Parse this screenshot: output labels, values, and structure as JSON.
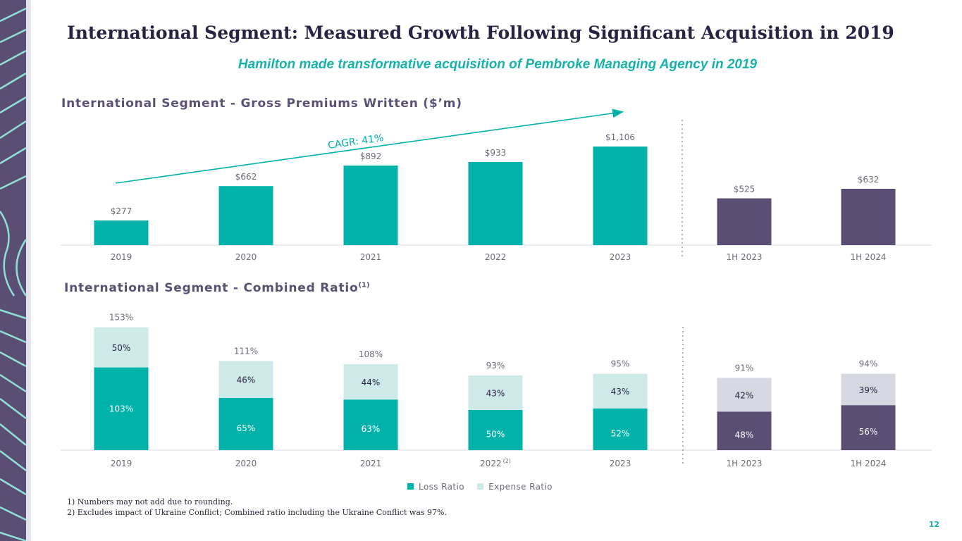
{
  "title": "International Segment: Measured Growth Following Significant Acquisition in 2019",
  "subtitle": "Hamilton made transformative acquisition of Pembroke Managing Agency in 2019",
  "colors": {
    "teal": "#00b2a9",
    "purple": "#5a4e75",
    "light_teal": "#cdeae8",
    "light_grey": "#d6d8e1",
    "title": "#2a2244"
  },
  "chart_data": [
    {
      "type": "bar",
      "title": "International Segment - Gross Premiums Written ($’m)",
      "categories": [
        "2019",
        "2020",
        "2021",
        "2022",
        "2023",
        "1H 2023",
        "1H 2024"
      ],
      "values": [
        277,
        662,
        892,
        933,
        1106,
        525,
        632
      ],
      "value_labels": [
        "$277",
        "$662",
        "$892",
        "$933",
        "$1,106",
        "$525",
        "$632"
      ],
      "highlight": [
        "teal",
        "teal",
        "teal",
        "teal",
        "teal",
        "purple",
        "purple"
      ],
      "annotation": "CAGR: 41%",
      "ylim": [
        0,
        1200
      ]
    },
    {
      "type": "bar",
      "stacked": true,
      "title": "International Segment - Combined Ratio",
      "title_footnote": "(1)",
      "categories": [
        "2019",
        "2020",
        "2021",
        "2022",
        "2023",
        "1H 2023",
        "1H 2024"
      ],
      "category_footnotes": [
        "",
        "",
        "",
        "(2)",
        "",
        "",
        ""
      ],
      "series": [
        {
          "name": "Loss Ratio",
          "values": [
            103,
            65,
            63,
            50,
            52,
            48,
            56
          ],
          "labels": [
            "103%",
            "65%",
            "63%",
            "50%",
            "52%",
            "48%",
            "56%"
          ]
        },
        {
          "name": "Expense Ratio",
          "values": [
            50,
            46,
            44,
            43,
            43,
            42,
            39
          ],
          "labels": [
            "50%",
            "46%",
            "44%",
            "43%",
            "43%",
            "42%",
            "39%"
          ]
        }
      ],
      "totals": [
        153,
        111,
        108,
        93,
        95,
        91,
        94
      ],
      "total_labels": [
        "153%",
        "111%",
        "108%",
        "93%",
        "95%",
        "91%",
        "94%"
      ],
      "ylim": [
        0,
        160
      ],
      "legend": [
        "Loss Ratio",
        "Expense Ratio"
      ]
    }
  ],
  "legend": {
    "loss": "Loss Ratio",
    "expense": "Expense Ratio"
  },
  "footnotes": [
    "1)  Numbers may not add due to rounding.",
    "2) Excludes impact of Ukraine Conflict; Combined ratio including the Ukraine Conflict was 97%."
  ],
  "page_number": "12"
}
